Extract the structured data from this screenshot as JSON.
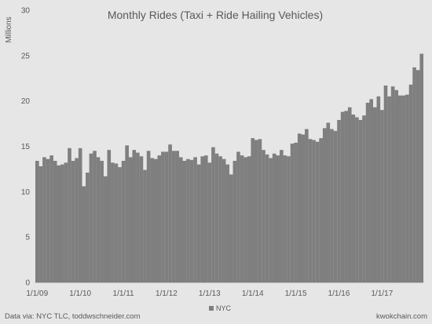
{
  "chart_data": {
    "type": "bar",
    "title": "Monthly Rides (Taxi + Ride Hailing Vehicles)",
    "ylabel": "Millions",
    "xlabel": "",
    "ylim": [
      0,
      30
    ],
    "yticks": [
      0,
      5,
      10,
      15,
      20,
      25,
      30
    ],
    "x_tick_labels": [
      "1/1/09",
      "1/1/10",
      "1/1/11",
      "1/1/12",
      "1/1/13",
      "1/1/14",
      "1/1/15",
      "1/1/16",
      "1/1/17"
    ],
    "months_per_year": 12,
    "grid": false,
    "legend_position": "bottom",
    "series": [
      {
        "name": "NYC",
        "color": "#7f7f7f",
        "values": [
          13.4,
          12.8,
          13.8,
          13.6,
          14.0,
          13.4,
          12.9,
          13.0,
          13.2,
          14.8,
          13.4,
          13.7,
          14.8,
          10.6,
          12.1,
          14.2,
          14.5,
          13.8,
          13.4,
          11.7,
          14.6,
          13.2,
          13.1,
          12.7,
          13.4,
          15.1,
          13.8,
          14.6,
          14.3,
          13.9,
          12.4,
          14.5,
          13.7,
          13.6,
          14.0,
          14.4,
          14.4,
          15.2,
          14.5,
          14.5,
          13.8,
          13.4,
          13.6,
          13.5,
          13.8,
          13.0,
          13.9,
          14.0,
          13.2,
          14.9,
          14.2,
          13.9,
          13.6,
          13.0,
          11.9,
          13.4,
          14.4,
          14.0,
          13.8,
          13.9,
          15.9,
          15.7,
          15.8,
          14.6,
          14.1,
          13.7,
          14.2,
          14.0,
          14.6,
          14.0,
          13.9,
          15.3,
          15.4,
          16.4,
          16.3,
          16.9,
          15.8,
          15.7,
          15.5,
          15.9,
          17.0,
          17.6,
          16.9,
          16.7,
          17.9,
          18.8,
          18.9,
          19.3,
          18.5,
          18.2,
          17.9,
          18.4,
          19.8,
          20.2,
          19.3,
          20.5,
          19.0,
          21.7,
          20.5,
          21.6,
          21.2,
          20.6,
          20.6,
          20.7,
          21.8,
          23.7,
          23.4,
          25.2
        ]
      }
    ]
  },
  "footer": {
    "source": "Data via: NYC TLC, toddwschneider.com",
    "credit": "kwokchain.com"
  }
}
